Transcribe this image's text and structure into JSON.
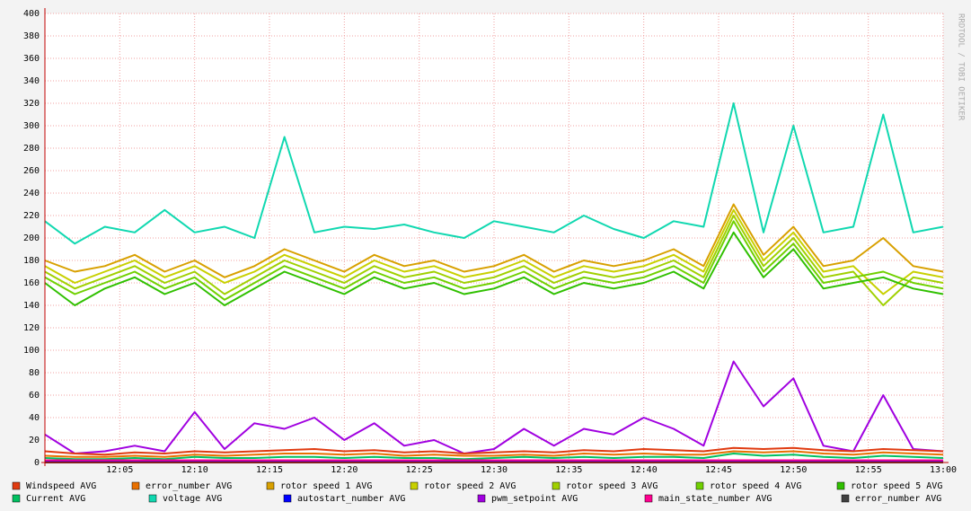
{
  "chart_data": {
    "type": "line",
    "watermark": "RRDTOOL / TOBI OETIKER",
    "x": [
      0,
      2,
      4,
      6,
      8,
      10,
      12,
      14,
      16,
      18,
      20,
      22,
      24,
      26,
      28,
      30,
      32,
      34,
      36,
      38,
      40,
      42,
      44,
      46,
      48,
      50,
      52,
      54,
      56,
      58,
      60
    ],
    "xlim": [
      0,
      60
    ],
    "xticks": [
      {
        "value": 5,
        "label": "12:05"
      },
      {
        "value": 10,
        "label": "12:10"
      },
      {
        "value": 15,
        "label": "12:15"
      },
      {
        "value": 20,
        "label": "12:20"
      },
      {
        "value": 25,
        "label": "12:25"
      },
      {
        "value": 30,
        "label": "12:30"
      },
      {
        "value": 35,
        "label": "12:35"
      },
      {
        "value": 40,
        "label": "12:40"
      },
      {
        "value": 45,
        "label": "12:45"
      },
      {
        "value": 50,
        "label": "12:50"
      },
      {
        "value": 55,
        "label": "12:55"
      },
      {
        "value": 60,
        "label": "13:00"
      }
    ],
    "ylim": [
      0,
      400
    ],
    "yticks": [
      0,
      20,
      40,
      60,
      80,
      100,
      120,
      140,
      160,
      180,
      200,
      220,
      240,
      260,
      280,
      300,
      320,
      340,
      360,
      380,
      400
    ],
    "grid": true,
    "series": [
      {
        "name": "Windspeed AVG",
        "color": "#e03a10",
        "values": [
          10,
          8,
          7,
          9,
          8,
          10,
          9,
          10,
          11,
          12,
          10,
          11,
          9,
          10,
          8,
          9,
          10,
          9,
          11,
          10,
          12,
          11,
          10,
          13,
          12,
          13,
          11,
          10,
          12,
          11,
          10
        ]
      },
      {
        "name": "error_number AVG",
        "color": "#e87000",
        "values": [
          6,
          5,
          5,
          6,
          5,
          7,
          6,
          7,
          8,
          8,
          7,
          8,
          6,
          7,
          6,
          6,
          7,
          6,
          8,
          7,
          8,
          7,
          7,
          10,
          9,
          10,
          8,
          7,
          9,
          8,
          7
        ]
      },
      {
        "name": "rotor speed 1 AVG",
        "color": "#d8a000",
        "values": [
          180,
          170,
          175,
          185,
          170,
          180,
          165,
          175,
          190,
          180,
          170,
          185,
          175,
          180,
          170,
          175,
          185,
          170,
          180,
          175,
          180,
          190,
          175,
          230,
          185,
          210,
          175,
          180,
          200,
          175,
          170
        ]
      },
      {
        "name": "rotor speed 2 AVG",
        "color": "#c8d000",
        "values": [
          175,
          160,
          170,
          180,
          165,
          175,
          160,
          170,
          185,
          175,
          165,
          180,
          170,
          175,
          165,
          170,
          180,
          165,
          175,
          170,
          175,
          185,
          170,
          225,
          180,
          205,
          170,
          175,
          150,
          170,
          165
        ]
      },
      {
        "name": "rotor speed 3 AVG",
        "color": "#a0d000",
        "values": [
          170,
          155,
          165,
          175,
          160,
          170,
          150,
          165,
          180,
          170,
          160,
          175,
          165,
          170,
          160,
          165,
          175,
          160,
          170,
          165,
          170,
          180,
          165,
          220,
          175,
          200,
          165,
          170,
          140,
          165,
          160
        ]
      },
      {
        "name": "rotor speed 4 AVG",
        "color": "#70d000",
        "values": [
          165,
          150,
          160,
          170,
          155,
          165,
          145,
          160,
          175,
          165,
          155,
          170,
          160,
          165,
          155,
          160,
          170,
          155,
          165,
          160,
          165,
          175,
          160,
          215,
          170,
          195,
          160,
          165,
          170,
          160,
          155
        ]
      },
      {
        "name": "rotor speed 5 AVG",
        "color": "#30c000",
        "values": [
          160,
          140,
          155,
          165,
          150,
          160,
          140,
          155,
          170,
          160,
          150,
          165,
          155,
          160,
          150,
          155,
          165,
          150,
          160,
          155,
          160,
          170,
          155,
          205,
          165,
          190,
          155,
          160,
          165,
          155,
          150
        ]
      },
      {
        "name": "Current AVG",
        "color": "#00c060",
        "values": [
          4,
          3,
          3,
          4,
          3,
          5,
          4,
          4,
          5,
          5,
          4,
          5,
          4,
          4,
          3,
          4,
          5,
          4,
          5,
          4,
          5,
          5,
          4,
          8,
          6,
          7,
          5,
          4,
          6,
          5,
          4
        ]
      },
      {
        "name": "voltage AVG",
        "color": "#10d8b0",
        "values": [
          215,
          195,
          210,
          205,
          225,
          205,
          210,
          200,
          290,
          205,
          210,
          208,
          212,
          205,
          200,
          215,
          210,
          205,
          220,
          208,
          200,
          215,
          210,
          320,
          205,
          300,
          205,
          210,
          310,
          205,
          210
        ]
      },
      {
        "name": "autostart_number AVG",
        "color": "#0000ff",
        "values": [
          1,
          1,
          1,
          1,
          1,
          1,
          1,
          1,
          1,
          1,
          1,
          1,
          1,
          1,
          1,
          1,
          1,
          1,
          1,
          1,
          1,
          1,
          1,
          1,
          1,
          1,
          1,
          1,
          1,
          1,
          1
        ]
      },
      {
        "name": "pwm_setpoint AVG",
        "color": "#a000e0",
        "values": [
          25,
          8,
          10,
          15,
          10,
          45,
          12,
          35,
          30,
          40,
          20,
          35,
          15,
          20,
          8,
          12,
          30,
          15,
          30,
          25,
          40,
          30,
          15,
          90,
          50,
          75,
          15,
          10,
          60,
          12,
          10
        ]
      },
      {
        "name": "main_state_number AVG",
        "color": "#ff0090",
        "values": [
          2,
          2,
          2,
          2,
          2,
          2,
          2,
          2,
          2,
          2,
          2,
          2,
          2,
          2,
          2,
          2,
          2,
          2,
          2,
          2,
          2,
          2,
          2,
          2,
          2,
          2,
          2,
          2,
          2,
          2,
          2
        ]
      },
      {
        "name": "error_number AVG",
        "color": "#404040",
        "values": [
          0,
          0,
          0,
          0,
          0,
          0,
          0,
          0,
          0,
          0,
          0,
          0,
          0,
          0,
          0,
          0,
          0,
          0,
          0,
          0,
          0,
          0,
          0,
          0,
          0,
          0,
          0,
          0,
          0,
          0,
          0
        ]
      }
    ]
  }
}
